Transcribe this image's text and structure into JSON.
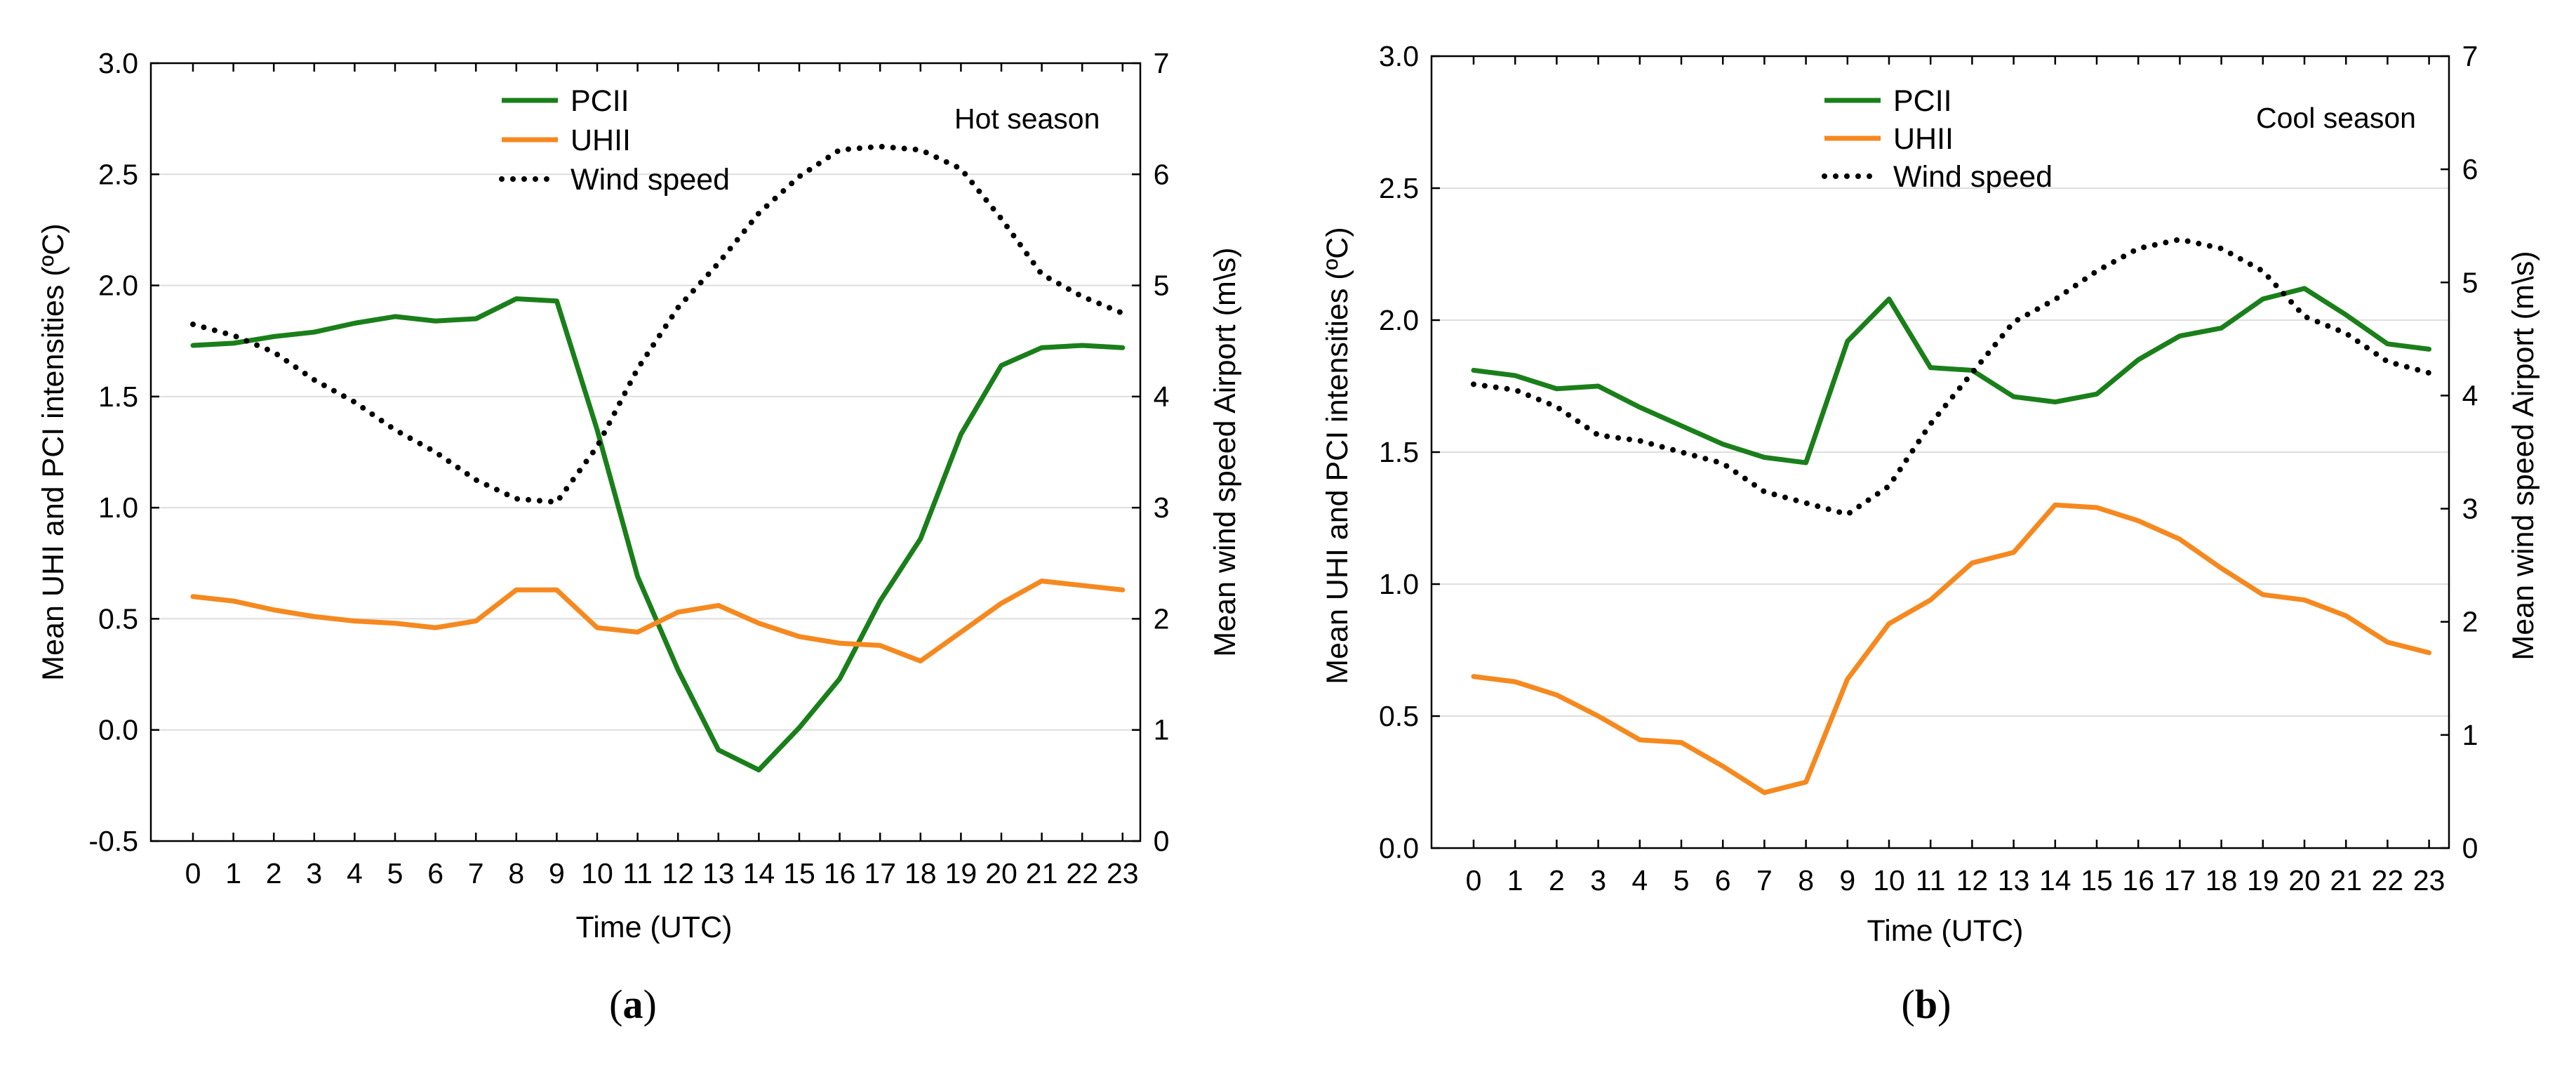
{
  "chart_data": [
    {
      "type": "line",
      "panel": "(a)",
      "caption_letter": "a",
      "season_label": "Hot season",
      "xlabel": "Time (UTC)",
      "ylabel": "Mean UHI and PCI intensities (ºC)",
      "y2label": "Mean wind speed Airport (m\\s)",
      "ylim": [
        -0.5,
        3.0
      ],
      "y_ticks": [
        "-0.5",
        "0.0",
        "0.5",
        "1.0",
        "1.5",
        "2.0",
        "2.5",
        "3.0"
      ],
      "y2lim": [
        0,
        7
      ],
      "y2_ticks": [
        "0",
        "1",
        "2",
        "3",
        "4",
        "5",
        "6",
        "7"
      ],
      "x": [
        0,
        1,
        2,
        3,
        4,
        5,
        6,
        7,
        8,
        9,
        10,
        11,
        12,
        13,
        14,
        15,
        16,
        17,
        18,
        19,
        20,
        21,
        22,
        23
      ],
      "x_ticks": [
        "0",
        "1",
        "2",
        "3",
        "4",
        "5",
        "6",
        "7",
        "8",
        "9",
        "10",
        "11",
        "12",
        "13",
        "14",
        "15",
        "16",
        "17",
        "18",
        "19",
        "20",
        "21",
        "22",
        "23"
      ],
      "series": [
        {
          "name": "PCII",
          "axis": "left",
          "color": "#1a7f1a",
          "style": "solid",
          "values": [
            1.73,
            1.74,
            1.77,
            1.79,
            1.83,
            1.86,
            1.84,
            1.85,
            1.94,
            1.93,
            1.35,
            0.69,
            0.27,
            -0.09,
            -0.18,
            0.01,
            0.23,
            0.58,
            0.86,
            1.33,
            1.64,
            1.72,
            1.73,
            1.72
          ]
        },
        {
          "name": "UHII",
          "axis": "left",
          "color": "#f5891f",
          "style": "solid",
          "values": [
            0.6,
            0.58,
            0.54,
            0.51,
            0.49,
            0.48,
            0.46,
            0.49,
            0.63,
            0.63,
            0.46,
            0.44,
            0.53,
            0.56,
            0.48,
            0.42,
            0.39,
            0.38,
            0.31,
            0.44,
            0.57,
            0.67,
            0.65,
            0.63
          ]
        },
        {
          "name": "Wind speed",
          "axis": "right",
          "color": "#000000",
          "style": "dotted",
          "values": [
            4.65,
            4.55,
            4.4,
            4.15,
            3.95,
            3.7,
            3.5,
            3.25,
            3.08,
            3.05,
            3.55,
            4.25,
            4.8,
            5.2,
            5.65,
            5.98,
            6.22,
            6.25,
            6.22,
            6.05,
            5.6,
            5.1,
            4.9,
            4.75
          ]
        }
      ]
    },
    {
      "type": "line",
      "panel": "(b)",
      "caption_letter": "b",
      "season_label": "Cool season",
      "xlabel": "Time (UTC)",
      "ylabel": "Mean UHI and PCI intensities (ºC)",
      "y2label": "Mean wind speed Airport (m\\s)",
      "ylim": [
        0.0,
        3.0
      ],
      "y_ticks": [
        "0.0",
        "0.5",
        "1.0",
        "1.5",
        "2.0",
        "2.5",
        "3.0"
      ],
      "y2lim": [
        0,
        7
      ],
      "y2_ticks": [
        "0",
        "1",
        "2",
        "3",
        "4",
        "5",
        "6",
        "7"
      ],
      "x": [
        0,
        1,
        2,
        3,
        4,
        5,
        6,
        7,
        8,
        9,
        10,
        11,
        12,
        13,
        14,
        15,
        16,
        17,
        18,
        19,
        20,
        21,
        22,
        23
      ],
      "x_ticks": [
        "0",
        "1",
        "2",
        "3",
        "4",
        "5",
        "6",
        "7",
        "8",
        "9",
        "10",
        "11",
        "12",
        "13",
        "14",
        "15",
        "16",
        "17",
        "18",
        "19",
        "20",
        "21",
        "22",
        "23"
      ],
      "series": [
        {
          "name": "PCII",
          "axis": "left",
          "color": "#1a7f1a",
          "style": "solid",
          "values": [
            1.81,
            1.79,
            1.74,
            1.75,
            1.67,
            1.6,
            1.53,
            1.48,
            1.46,
            1.92,
            2.08,
            1.82,
            1.81,
            1.71,
            1.69,
            1.72,
            1.85,
            1.94,
            1.97,
            2.08,
            2.12,
            2.02,
            1.91,
            1.89
          ]
        },
        {
          "name": "UHII",
          "axis": "left",
          "color": "#f5891f",
          "style": "solid",
          "values": [
            0.65,
            0.63,
            0.58,
            0.5,
            0.41,
            0.4,
            0.31,
            0.21,
            0.25,
            0.64,
            0.85,
            0.94,
            1.08,
            1.12,
            1.3,
            1.29,
            1.24,
            1.17,
            1.06,
            0.96,
            0.94,
            0.88,
            0.78,
            0.74
          ]
        },
        {
          "name": "Wind speed",
          "axis": "right",
          "color": "#000000",
          "style": "dotted",
          "values": [
            4.1,
            4.05,
            3.9,
            3.65,
            3.6,
            3.5,
            3.4,
            3.15,
            3.05,
            2.95,
            3.2,
            3.75,
            4.2,
            4.65,
            4.85,
            5.1,
            5.3,
            5.38,
            5.3,
            5.1,
            4.7,
            4.55,
            4.3,
            4.2
          ]
        }
      ]
    }
  ]
}
